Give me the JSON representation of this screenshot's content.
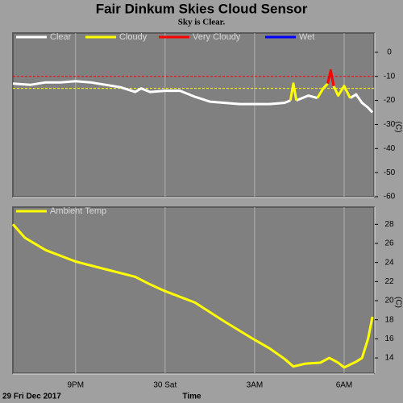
{
  "chart_data": [
    {
      "type": "line",
      "title": "Fair Dinkum Skies Cloud Sensor",
      "subtitle": "Sky is Clear.",
      "ylabel": "(C)",
      "x": [
        18.9,
        19.5,
        20,
        20.5,
        21,
        21.5,
        22,
        22.5,
        23,
        23.2,
        23.5,
        24,
        24.5,
        25,
        25.5,
        26,
        26.5,
        27,
        27.5,
        28,
        28.2,
        28.3,
        28.4,
        28.8,
        29.1,
        29.3,
        29.45,
        29.55,
        29.65,
        29.8,
        30,
        30.2,
        30.4,
        30.6,
        30.8,
        30.95
      ],
      "series": [
        {
          "name": "Clear",
          "color": "#ffffff",
          "values": [
            -13,
            -13.5,
            -12.5,
            -12.5,
            -12,
            -12.5,
            -13.5,
            -14.5,
            -16.5,
            -15,
            -16.5,
            -16,
            -16,
            -18.5,
            -20.5,
            -21,
            -21.5,
            -21.5,
            -21.5,
            -21,
            -20,
            null,
            -20,
            -18,
            -19,
            null,
            null,
            null,
            null,
            -18,
            null,
            -19,
            -17.5,
            -21,
            -23,
            -25
          ]
        },
        {
          "name": "Cloudy",
          "color": "#ffff00",
          "values": [
            null,
            null,
            null,
            null,
            null,
            null,
            null,
            null,
            null,
            null,
            null,
            null,
            null,
            null,
            null,
            null,
            null,
            null,
            null,
            null,
            -20,
            -13,
            -20,
            null,
            -19,
            -15,
            -13,
            null,
            -14,
            -18,
            -14,
            -19,
            null,
            null,
            null,
            null
          ]
        },
        {
          "name": "Very Cloudy",
          "color": "#ff0000",
          "values": [
            null,
            null,
            null,
            null,
            null,
            null,
            null,
            null,
            null,
            null,
            null,
            null,
            null,
            null,
            null,
            null,
            null,
            null,
            null,
            null,
            null,
            null,
            null,
            null,
            null,
            null,
            -13,
            -7.5,
            -14,
            null,
            null,
            null,
            null,
            null,
            null,
            null
          ]
        },
        {
          "name": "Wet",
          "color": "#0000ff",
          "values": [
            null,
            null,
            null,
            null,
            null,
            null,
            null,
            null,
            null,
            null,
            null,
            null,
            null,
            null,
            null,
            null,
            null,
            null,
            null,
            null,
            null,
            null,
            null,
            null,
            null,
            null,
            null,
            null,
            null,
            null,
            null,
            null,
            null,
            null,
            null,
            null
          ]
        }
      ],
      "thresholds": [
        {
          "value": -10,
          "color": "#ff0000"
        },
        {
          "value": -15,
          "color": "#ffff00"
        }
      ],
      "xlim": [
        18.9,
        31.0
      ],
      "xticks": [
        {
          "value": 21,
          "label": "9PM"
        },
        {
          "value": 24,
          "label": "30 Sat"
        },
        {
          "value": 27,
          "label": "3AM"
        },
        {
          "value": 30,
          "label": "6AM"
        }
      ],
      "ylim": [
        -60,
        8
      ],
      "yticks": [
        0,
        -10,
        -20,
        -30,
        -40,
        -50,
        -60
      ],
      "grid": true
    },
    {
      "type": "line",
      "ylabel": "(C)",
      "xlabel": "Time",
      "date_label": "29 Fri Dec 2017",
      "x": [
        18.9,
        19.3,
        20,
        21,
        22,
        23,
        23.5,
        24,
        25,
        26,
        27,
        27.5,
        28,
        28.3,
        28.7,
        29.2,
        29.5,
        29.8,
        30,
        30.4,
        30.6,
        30.8,
        30.95
      ],
      "series": [
        {
          "name": "Ambient Temp",
          "color": "#ffff00",
          "values": [
            28,
            26.6,
            25.3,
            24.1,
            23.3,
            22.5,
            21.7,
            21,
            19.8,
            17.8,
            15.9,
            15,
            13.9,
            13.1,
            13.4,
            13.5,
            14,
            13.5,
            13,
            13.6,
            14,
            16,
            18.3
          ]
        }
      ],
      "xlim": [
        18.9,
        31.0
      ],
      "xticks": [
        {
          "value": 21,
          "label": "9PM"
        },
        {
          "value": 24,
          "label": "30 Sat"
        },
        {
          "value": 27,
          "label": "3AM"
        },
        {
          "value": 30,
          "label": "6AM"
        }
      ],
      "ylim": [
        12.4,
        29.8
      ],
      "yticks": [
        14,
        16,
        18,
        20,
        22,
        24,
        26,
        28
      ],
      "grid": true
    }
  ]
}
